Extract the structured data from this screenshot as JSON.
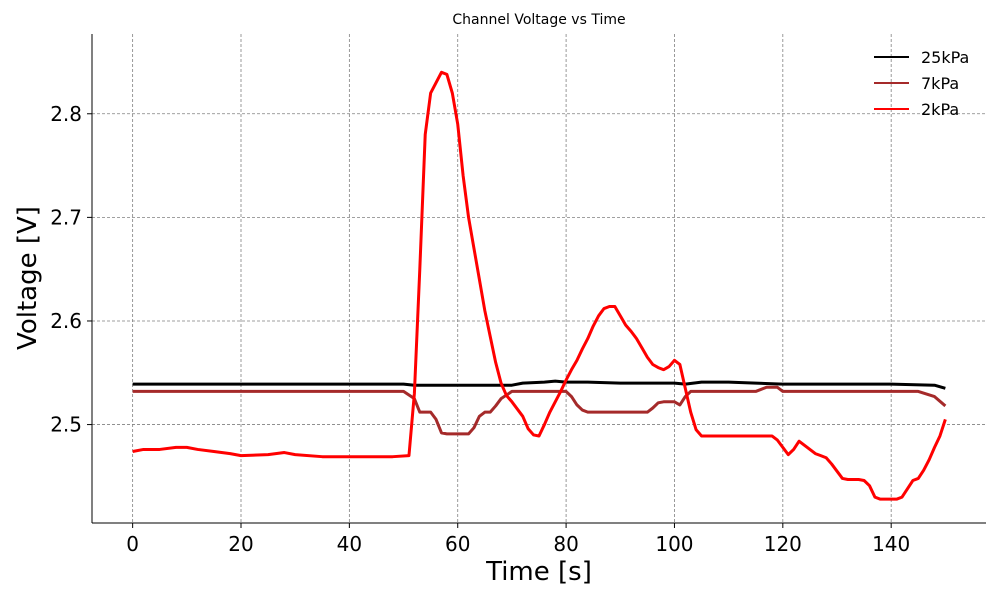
{
  "chart_data": {
    "type": "line",
    "title": "Channel Voltage vs Time",
    "xlabel": "Time [s]",
    "ylabel": "Voltage [V]",
    "xlim": [
      -7.5,
      157.5
    ],
    "ylim": [
      2.405,
      2.877
    ],
    "x_ticks": [
      0,
      20,
      40,
      60,
      80,
      100,
      120,
      140
    ],
    "x_tick_labels": [
      "0",
      "20",
      "40",
      "60",
      "80",
      "100",
      "120",
      "140"
    ],
    "y_ticks": [
      2.5,
      2.6,
      2.7,
      2.8
    ],
    "y_tick_labels": [
      "2.5",
      "2.6",
      "2.7",
      "2.8"
    ],
    "grid": true,
    "legend_position": "top-right",
    "series": [
      {
        "name": "25kPa",
        "color": "#000000",
        "x": [
          0,
          20,
          40,
          50,
          52,
          60,
          70,
          72,
          76,
          78,
          80,
          84,
          90,
          100,
          102,
          105,
          110,
          115,
          120,
          130,
          140,
          148,
          150
        ],
        "y": [
          2.539,
          2.539,
          2.539,
          2.539,
          2.538,
          2.538,
          2.538,
          2.54,
          2.541,
          2.542,
          2.541,
          2.541,
          2.54,
          2.54,
          2.539,
          2.541,
          2.541,
          2.54,
          2.539,
          2.539,
          2.539,
          2.538,
          2.535
        ]
      },
      {
        "name": "7kPa",
        "color": "#a52a2a",
        "x": [
          0,
          10,
          20,
          40,
          50,
          52,
          53,
          55,
          56,
          57,
          58,
          62,
          63,
          64,
          65,
          66,
          67,
          68,
          70,
          75,
          80,
          81,
          82,
          83,
          84,
          85,
          90,
          95,
          96,
          97,
          98,
          100,
          101,
          102,
          103,
          110,
          115,
          117,
          119,
          120,
          130,
          140,
          145,
          148,
          150
        ],
        "y": [
          2.532,
          2.532,
          2.532,
          2.532,
          2.532,
          2.525,
          2.512,
          2.512,
          2.505,
          2.492,
          2.491,
          2.491,
          2.497,
          2.508,
          2.512,
          2.512,
          2.518,
          2.525,
          2.532,
          2.532,
          2.532,
          2.527,
          2.519,
          2.514,
          2.512,
          2.512,
          2.512,
          2.512,
          2.516,
          2.521,
          2.522,
          2.522,
          2.519,
          2.527,
          2.532,
          2.532,
          2.532,
          2.536,
          2.536,
          2.532,
          2.532,
          2.532,
          2.532,
          2.527,
          2.518
        ]
      },
      {
        "name": "2kPa",
        "color": "#ff0000",
        "x": [
          0,
          2,
          5,
          8,
          10,
          12,
          15,
          18,
          20,
          25,
          28,
          30,
          35,
          40,
          45,
          48,
          51,
          52,
          53,
          54,
          55,
          56,
          57,
          58,
          59,
          60,
          61,
          62,
          63,
          64,
          65,
          66,
          67,
          68,
          69,
          70,
          71,
          72,
          73,
          74,
          75,
          76,
          77,
          78,
          79,
          80,
          81,
          82,
          83,
          84,
          85,
          86,
          87,
          88,
          89,
          90,
          91,
          92,
          93,
          94,
          95,
          96,
          97,
          98,
          99,
          100,
          101,
          102,
          103,
          104,
          105,
          108,
          110,
          115,
          118,
          119,
          120,
          121,
          122,
          123,
          124,
          125,
          126,
          127,
          128,
          129,
          130,
          131,
          132,
          133,
          134,
          135,
          136,
          137,
          138,
          139,
          140,
          141,
          142,
          143,
          144,
          145,
          146,
          147,
          148,
          149,
          150
        ],
        "y": [
          2.474,
          2.476,
          2.476,
          2.478,
          2.478,
          2.476,
          2.474,
          2.472,
          2.47,
          2.471,
          2.473,
          2.471,
          2.469,
          2.469,
          2.469,
          2.469,
          2.47,
          2.53,
          2.65,
          2.78,
          2.82,
          2.83,
          2.84,
          2.838,
          2.82,
          2.79,
          2.74,
          2.7,
          2.67,
          2.64,
          2.61,
          2.585,
          2.56,
          2.54,
          2.528,
          2.522,
          2.515,
          2.508,
          2.496,
          2.49,
          2.489,
          2.5,
          2.512,
          2.522,
          2.532,
          2.543,
          2.553,
          2.562,
          2.573,
          2.583,
          2.595,
          2.605,
          2.612,
          2.614,
          2.614,
          2.605,
          2.596,
          2.59,
          2.583,
          2.574,
          2.565,
          2.558,
          2.555,
          2.553,
          2.556,
          2.562,
          2.558,
          2.535,
          2.512,
          2.495,
          2.489,
          2.489,
          2.489,
          2.489,
          2.489,
          2.485,
          2.478,
          2.471,
          2.476,
          2.484,
          2.48,
          2.476,
          2.472,
          2.47,
          2.468,
          2.462,
          2.455,
          2.448,
          2.447,
          2.447,
          2.447,
          2.446,
          2.441,
          2.43,
          2.428,
          2.428,
          2.428,
          2.428,
          2.43,
          2.438,
          2.446,
          2.448,
          2.456,
          2.466,
          2.478,
          2.489,
          2.505
        ]
      }
    ]
  }
}
